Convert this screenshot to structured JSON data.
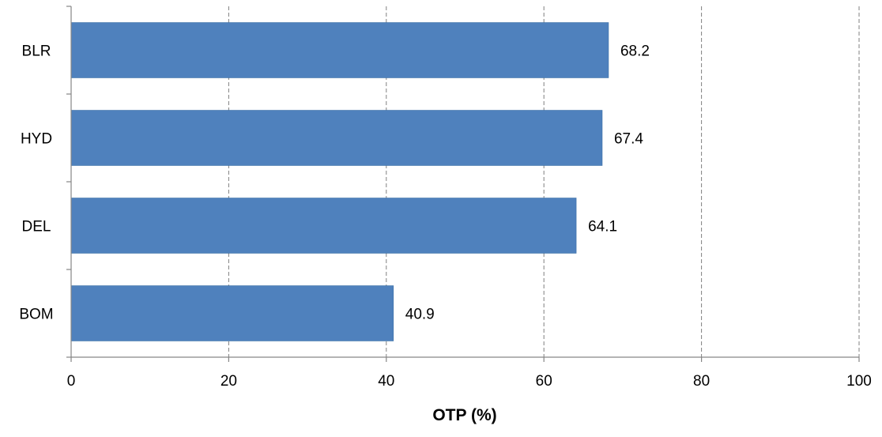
{
  "chart_data": {
    "type": "bar",
    "orientation": "horizontal",
    "categories": [
      "BLR",
      "HYD",
      "DEL",
      "BOM"
    ],
    "values": [
      68.2,
      67.4,
      64.1,
      40.9
    ],
    "data_labels": [
      "68.2",
      "67.4",
      "64.1",
      "40.9"
    ],
    "title": "",
    "xlabel": "OTP (%)",
    "ylabel": "",
    "xlim": [
      0,
      100
    ],
    "x_ticks": [
      0,
      20,
      40,
      60,
      80,
      100
    ],
    "x_tick_labels": [
      "0",
      "20",
      "40",
      "60",
      "80",
      "100"
    ],
    "grid": "vertical dashed",
    "legend": "none",
    "bar_color": "#4f81bd"
  }
}
